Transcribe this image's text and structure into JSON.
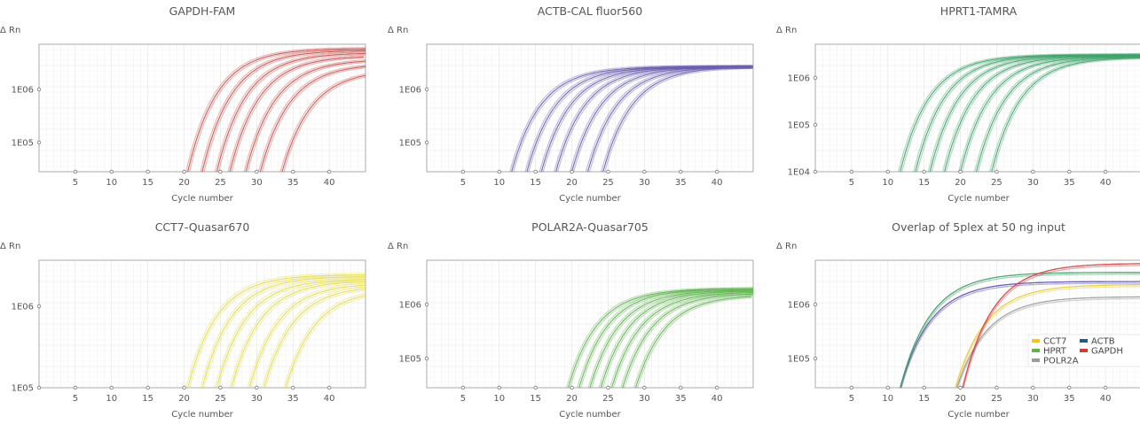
{
  "charts": [
    {
      "title": "GAPDH-FAM",
      "ylabel": "Δ Rn",
      "xlabel": "Cycle number",
      "xticks": [
        5,
        10,
        15,
        20,
        25,
        30,
        35,
        40
      ],
      "yticks": [
        "1E05",
        "1E06"
      ],
      "color": "#c9524f",
      "chart_data": {
        "type": "line",
        "xlim": [
          0,
          45
        ],
        "ylim_log10": [
          4.55,
          6.65
        ],
        "yscale": "log",
        "curves_x_at_baseline": [
          20.5,
          22.5,
          24.5,
          26.3,
          28.5,
          30.5,
          33.5
        ],
        "plateau_log10": [
          6.6,
          6.57,
          6.53,
          6.48,
          6.42,
          6.35,
          6.25
        ]
      }
    },
    {
      "title": "ACTB-CAL fluor560",
      "ylabel": "Δ Rn",
      "xlabel": "Cycle number",
      "xticks": [
        5,
        10,
        15,
        20,
        25,
        30,
        35,
        40
      ],
      "yticks": [
        "1E05",
        "1E06"
      ],
      "color": "#6a5fb0",
      "chart_data": {
        "type": "line",
        "xlim": [
          0,
          45
        ],
        "ylim_log10": [
          4.55,
          6.65
        ],
        "yscale": "log",
        "curves_x_at_baseline": [
          11.7,
          13.8,
          15.8,
          17.8,
          20.0,
          22.2,
          24.3
        ],
        "plateau_log10": [
          6.3,
          6.3,
          6.3,
          6.3,
          6.3,
          6.3,
          6.3
        ]
      }
    },
    {
      "title": "HPRT1-TAMRA",
      "ylabel": "Δ Rn",
      "xlabel": "Cycle number",
      "xticks": [
        5,
        10,
        15,
        20,
        25,
        30,
        35,
        40
      ],
      "yticks": [
        "1E04",
        "1E05",
        "1E06"
      ],
      "color": "#3fa36a",
      "chart_data": {
        "type": "line",
        "xlim": [
          0,
          45
        ],
        "ylim_log10": [
          4.0,
          6.65
        ],
        "yscale": "log",
        "curves_x_at_baseline": [
          11.7,
          13.8,
          15.8,
          17.8,
          20.0,
          22.2,
          24.3
        ],
        "plateau_log10": [
          6.45,
          6.45,
          6.44,
          6.43,
          6.42,
          6.41,
          6.4
        ]
      }
    },
    {
      "title": "CCT7-Quasar670",
      "ylabel": "Δ Rn",
      "xlabel": "Cycle number",
      "xticks": [
        5,
        10,
        15,
        20,
        25,
        30,
        35,
        40
      ],
      "yticks": [
        "1E05",
        "1E06"
      ],
      "color": "#e3dd4e",
      "chart_data": {
        "type": "line",
        "xlim": [
          0,
          45
        ],
        "ylim_log10": [
          5.0,
          6.5
        ],
        "yscale": "log",
        "curves_x_at_baseline": [
          20.5,
          22.5,
          24.5,
          26.5,
          29.0,
          31.0,
          34.0
        ],
        "plateau_log10": [
          6.35,
          6.33,
          6.3,
          6.28,
          6.25,
          6.22,
          6.18
        ]
      }
    },
    {
      "title": "POLAR2A-Quasar705",
      "ylabel": "Δ Rn",
      "xlabel": "Cycle number",
      "xticks": [
        5,
        10,
        15,
        20,
        25,
        30,
        35,
        40
      ],
      "yticks": [
        "1E05",
        "1E06"
      ],
      "color": "#5fb34f",
      "chart_data": {
        "type": "line",
        "xlim": [
          0,
          45
        ],
        "ylim_log10": [
          4.55,
          6.65
        ],
        "yscale": "log",
        "curves_x_at_baseline": [
          19.5,
          21.0,
          22.5,
          24.0,
          25.5,
          27.0,
          28.8
        ],
        "plateau_log10": [
          6.2,
          6.2,
          6.18,
          6.17,
          6.15,
          6.13,
          6.1
        ]
      }
    },
    {
      "title": "Overlap of 5plex at 50 ng input",
      "ylabel": "Δ Rn",
      "xlabel": "Cycle number",
      "xticks": [
        5,
        10,
        15,
        20,
        25,
        30,
        35,
        40
      ],
      "yticks": [
        "1E05",
        "1E06"
      ],
      "color": "#888888",
      "chart_data": {
        "type": "line",
        "xlim": [
          0,
          45
        ],
        "ylim_log10": [
          4.55,
          6.65
        ],
        "yscale": "log",
        "series": [
          {
            "name": "ACTB",
            "color": "#5a4fa8",
            "x_at_baseline": 11.7,
            "plateau_log10": 6.3
          },
          {
            "name": "HPRT",
            "color": "#3f9a67",
            "x_at_baseline": 11.7,
            "plateau_log10": 6.45
          },
          {
            "name": "CCT7",
            "color": "#e8c93a",
            "x_at_baseline": 19.3,
            "plateau_log10": 6.25
          },
          {
            "name": "POLR2A",
            "color": "#9a9a9a",
            "x_at_baseline": 19.5,
            "plateau_log10": 6.05
          },
          {
            "name": "GAPDH",
            "color": "#cc3b3b",
            "x_at_baseline": 20.3,
            "plateau_log10": 6.6
          }
        ],
        "legend": [
          {
            "label": "CCT7",
            "color": "#f5c518"
          },
          {
            "label": "ACTB",
            "color": "#1f5a8a"
          },
          {
            "label": "HPRT",
            "color": "#58b84a"
          },
          {
            "label": "GAPDH",
            "color": "#d23a3a"
          },
          {
            "label": "POLR2A",
            "color": "#9a9a9a"
          }
        ],
        "legend_position": "bottom-right"
      }
    }
  ]
}
